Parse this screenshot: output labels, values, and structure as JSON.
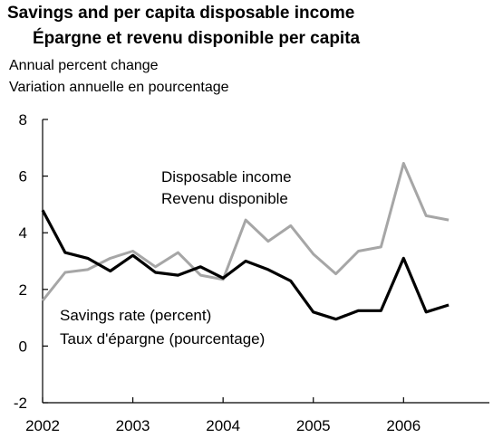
{
  "chart_data": {
    "type": "line",
    "title": "Savings and per capita disposable income",
    "subtitle": "Épargne et revenu disponible per capita",
    "ylabel": [
      "Annual percent change",
      "Variation annuelle en pourcentage"
    ],
    "xlabel": "",
    "ylim": [
      -2,
      8
    ],
    "yticks": [
      "8",
      "6",
      "4",
      "2",
      "0",
      "-2"
    ],
    "xlim": [
      2002,
      2006.75
    ],
    "xticks": [
      "2002",
      "2003",
      "2004",
      "2005",
      "2006"
    ],
    "grid": false,
    "x": [
      2002.0,
      2002.25,
      2002.5,
      2002.75,
      2003.0,
      2003.25,
      2003.5,
      2003.75,
      2004.0,
      2004.25,
      2004.5,
      2004.75,
      2005.0,
      2005.25,
      2005.5,
      2005.75,
      2006.0,
      2006.25,
      2006.5
    ],
    "series": [
      {
        "name_lines": [
          "Disposable income",
          "Revenu disponible"
        ],
        "color": "#a6a6a6",
        "values": [
          1.6,
          2.6,
          2.7,
          3.1,
          3.35,
          2.8,
          3.3,
          2.5,
          2.35,
          4.45,
          3.7,
          4.25,
          3.25,
          2.55,
          3.35,
          3.5,
          6.45,
          4.6,
          4.45
        ]
      },
      {
        "name_lines": [
          "Savings rate (percent)",
          "Taux d'épargne (pourcentage)"
        ],
        "color": "#000000",
        "values": [
          4.8,
          3.3,
          3.1,
          2.65,
          3.2,
          2.6,
          2.5,
          2.8,
          2.4,
          3.0,
          2.7,
          2.3,
          1.2,
          0.95,
          1.25,
          1.25,
          3.1,
          1.2,
          1.45
        ]
      }
    ]
  }
}
